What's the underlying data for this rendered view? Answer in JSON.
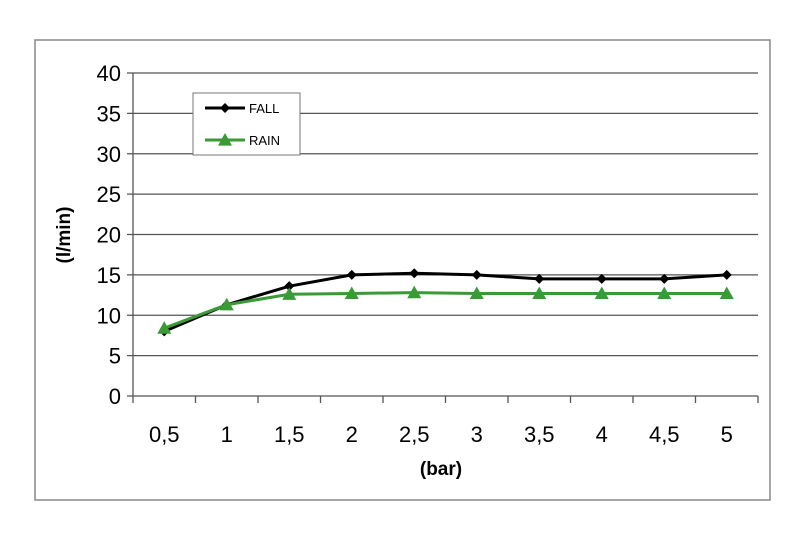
{
  "chart_data": {
    "type": "line",
    "title": "",
    "xlabel": "(bar)",
    "ylabel": "(l/min)",
    "categories": [
      "0,5",
      "1",
      "1,5",
      "2",
      "2,5",
      "3",
      "3,5",
      "4",
      "4,5",
      "5"
    ],
    "ylim": [
      0,
      40
    ],
    "yticks": [
      0,
      5,
      10,
      15,
      20,
      25,
      30,
      35,
      40
    ],
    "grid": true,
    "legend": "top-left",
    "series": [
      {
        "name": "FALL",
        "color": "#000000",
        "marker": "diamond",
        "values": [
          8.0,
          11.3,
          13.6,
          15.0,
          15.2,
          15.0,
          14.5,
          14.5,
          14.5,
          15.0
        ]
      },
      {
        "name": "RAIN",
        "color": "#3a9a35",
        "marker": "triangle",
        "values": [
          8.4,
          11.3,
          12.6,
          12.7,
          12.8,
          12.7,
          12.7,
          12.7,
          12.7,
          12.7
        ]
      }
    ]
  }
}
